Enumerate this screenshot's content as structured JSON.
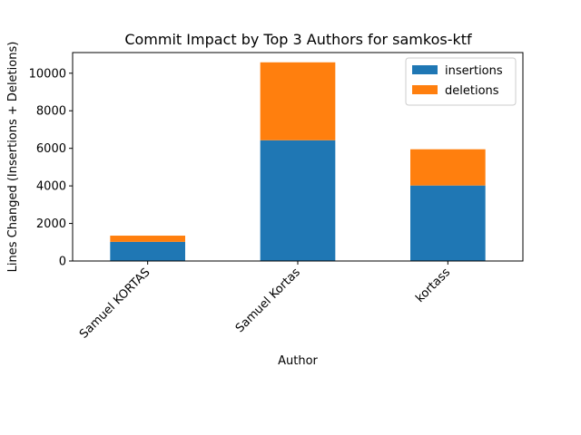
{
  "chart_data": {
    "type": "bar",
    "stacked": true,
    "title": "Commit Impact by Top 3 Authors for samkos-ktf",
    "xlabel": "Author",
    "ylabel": "Lines Changed (Insertions + Deletions)",
    "categories": [
      "Samuel KORTAS",
      "Samuel Kortas",
      "kortass"
    ],
    "series": [
      {
        "name": "insertions",
        "color": "#1f77b4",
        "values": [
          1020,
          6430,
          4020
        ]
      },
      {
        "name": "deletions",
        "color": "#ff7f0e",
        "values": [
          330,
          4150,
          1930
        ]
      }
    ],
    "ylim": [
      0,
      11100
    ],
    "yticks": [
      0,
      2000,
      4000,
      6000,
      8000,
      10000
    ],
    "ytick_labels": [
      "0",
      "2000",
      "4000",
      "6000",
      "8000",
      "10000"
    ],
    "legend_position": "top-right",
    "grid": false
  }
}
